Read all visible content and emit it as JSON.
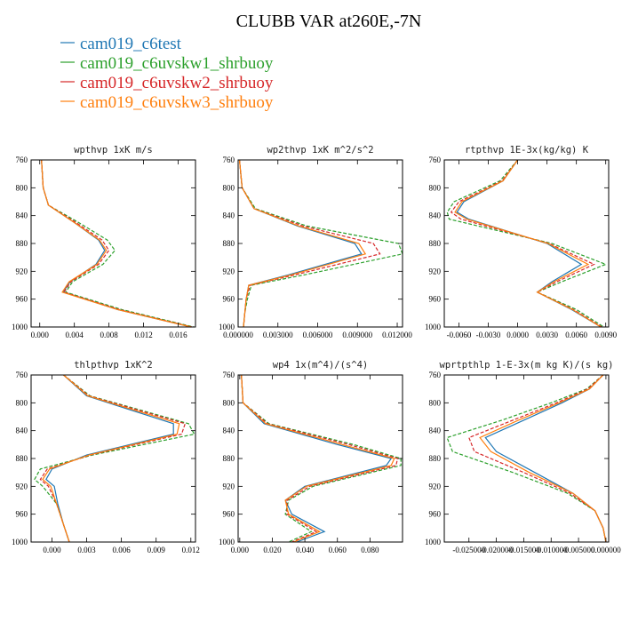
{
  "title": "CLUBB VAR at260E,-7N",
  "legend": [
    {
      "label": "cam019_c6test",
      "color": "#1f77b4",
      "dash": "solid"
    },
    {
      "label": "cam019_c6uvskw1_shrbuoy",
      "color": "#2ca02c",
      "dash": "dashed"
    },
    {
      "label": "cam019_c6uvskw2_shrbuoy",
      "color": "#d62728",
      "dash": "dashed"
    },
    {
      "label": "cam019_c6uvskw3_shrbuoy",
      "color": "#ff7f0e",
      "dash": "solid"
    }
  ],
  "chart_data": [
    {
      "type": "line",
      "title": "wpthvp  1xK m/s",
      "xlim": [
        -0.001,
        0.018
      ],
      "ylim": [
        760,
        1000
      ],
      "y_inverted": true,
      "xticks": [
        "0.000",
        "0.004",
        "0.008",
        "0.012",
        "0.016"
      ],
      "xtick_values": [
        0.0,
        0.004,
        0.008,
        0.012,
        0.016
      ],
      "yticks": [
        760,
        800,
        840,
        880,
        920,
        960,
        1000
      ],
      "y": [
        760,
        800,
        825,
        850,
        875,
        890,
        910,
        935,
        950,
        975,
        1000
      ],
      "series": [
        {
          "values": [
            0.0002,
            0.0004,
            0.001,
            0.004,
            0.0068,
            0.0075,
            0.0065,
            0.0035,
            0.0027,
            0.009,
            0.0175
          ]
        },
        {
          "values": [
            0.0002,
            0.0004,
            0.001,
            0.0045,
            0.0078,
            0.0087,
            0.0073,
            0.0038,
            0.003,
            0.0095,
            0.0178
          ]
        },
        {
          "values": [
            0.0002,
            0.0004,
            0.001,
            0.0042,
            0.0072,
            0.008,
            0.0068,
            0.0036,
            0.0028,
            0.0092,
            0.0176
          ]
        },
        {
          "values": [
            0.0002,
            0.0004,
            0.001,
            0.004,
            0.0069,
            0.0077,
            0.0066,
            0.0034,
            0.0026,
            0.009,
            0.0175
          ]
        }
      ]
    },
    {
      "type": "line",
      "title": "wp2thvp  1xK m^2/s^2",
      "xlim": [
        0.0,
        0.0124
      ],
      "ylim": [
        760,
        1000
      ],
      "y_inverted": true,
      "xticks": [
        "0.000000",
        "0.003000",
        "0.006000",
        "0.009000",
        "0.012000"
      ],
      "xtick_values": [
        0.0,
        0.003,
        0.006,
        0.009,
        0.012
      ],
      "yticks": [
        760,
        800,
        840,
        880,
        920,
        960,
        1000
      ],
      "y": [
        760,
        800,
        830,
        855,
        880,
        895,
        925,
        940,
        960,
        980,
        1000
      ],
      "series": [
        {
          "values": [
            0.0001,
            0.0003,
            0.0012,
            0.0045,
            0.0088,
            0.0093,
            0.0038,
            0.0008,
            0.0006,
            0.0005,
            0.0004
          ]
        },
        {
          "values": [
            0.0001,
            0.0003,
            0.0013,
            0.0052,
            0.0121,
            0.0124,
            0.005,
            0.001,
            0.0007,
            0.0005,
            0.0004
          ]
        },
        {
          "values": [
            0.0001,
            0.0003,
            0.0012,
            0.0049,
            0.0102,
            0.0107,
            0.0043,
            0.0009,
            0.0006,
            0.0005,
            0.0004
          ]
        },
        {
          "values": [
            0.0001,
            0.0003,
            0.0012,
            0.0046,
            0.0091,
            0.0096,
            0.004,
            0.0008,
            0.0006,
            0.0005,
            0.0004
          ]
        }
      ]
    },
    {
      "type": "line",
      "title": "rtpthvp  1E-3x(kg/kg) K",
      "xlim": [
        -0.0075,
        0.0093
      ],
      "ylim": [
        760,
        1000
      ],
      "y_inverted": true,
      "xticks": [
        "-0.0060",
        "-0.0030",
        "0.0000",
        "0.0030",
        "0.0060",
        "0.0090"
      ],
      "xtick_values": [
        -0.006,
        -0.003,
        0.0,
        0.003,
        0.006,
        0.009
      ],
      "yticks": [
        760,
        800,
        840,
        880,
        920,
        960,
        1000
      ],
      "y": [
        760,
        790,
        820,
        835,
        845,
        880,
        910,
        935,
        950,
        975,
        1000
      ],
      "series": [
        {
          "values": [
            0.0,
            -0.0015,
            -0.0055,
            -0.0062,
            -0.005,
            0.003,
            0.0065,
            0.0035,
            0.002,
            0.0055,
            0.0085
          ]
        },
        {
          "values": [
            0.0,
            -0.0018,
            -0.0065,
            -0.0072,
            -0.007,
            0.0035,
            0.009,
            0.0045,
            0.002,
            0.006,
            0.0088
          ]
        },
        {
          "values": [
            0.0,
            -0.0016,
            -0.006,
            -0.0068,
            -0.0058,
            0.0032,
            0.0078,
            0.004,
            0.002,
            0.0057,
            0.0086
          ]
        },
        {
          "values": [
            0.0,
            -0.0015,
            -0.0057,
            -0.0064,
            -0.0052,
            0.0031,
            0.0072,
            0.0037,
            0.002,
            0.0056,
            0.0085
          ]
        }
      ]
    },
    {
      "type": "line",
      "title": "thlpthvp  1xK^2",
      "xlim": [
        -0.0018,
        0.0124
      ],
      "ylim": [
        760,
        1000
      ],
      "y_inverted": true,
      "xticks": [
        "0.000",
        "0.003",
        "0.006",
        "0.009",
        "0.012"
      ],
      "xtick_values": [
        0.0,
        0.003,
        0.006,
        0.009,
        0.012
      ],
      "yticks": [
        760,
        800,
        840,
        880,
        920,
        960,
        1000
      ],
      "y": [
        760,
        790,
        830,
        845,
        875,
        895,
        910,
        920,
        945,
        975,
        1000
      ],
      "series": [
        {
          "values": [
            0.001,
            0.003,
            0.0105,
            0.0105,
            0.003,
            0.0,
            -0.0005,
            0.0002,
            0.0005,
            0.001,
            0.0015
          ]
        },
        {
          "values": [
            0.001,
            0.0033,
            0.0118,
            0.0123,
            0.0035,
            -0.001,
            -0.0015,
            -0.0008,
            0.0004,
            0.001,
            0.0015
          ]
        },
        {
          "values": [
            0.001,
            0.0032,
            0.0115,
            0.0112,
            0.0033,
            -0.0004,
            -0.001,
            -0.0003,
            0.0004,
            0.001,
            0.0015
          ]
        },
        {
          "values": [
            0.001,
            0.0031,
            0.011,
            0.0108,
            0.0032,
            -0.0002,
            -0.0008,
            -0.0001,
            0.0004,
            0.001,
            0.0015
          ]
        }
      ]
    },
    {
      "type": "line",
      "title": "wp4  1x(m^4)/(s^4)",
      "xlim": [
        -0.001,
        0.1
      ],
      "ylim": [
        760,
        1000
      ],
      "y_inverted": true,
      "xticks": [
        "0.000",
        "0.020",
        "0.040",
        "0.060",
        "0.080"
      ],
      "xtick_values": [
        0.0,
        0.02,
        0.04,
        0.06,
        0.08
      ],
      "yticks": [
        760,
        800,
        840,
        880,
        920,
        960,
        1000
      ],
      "y": [
        760,
        800,
        830,
        860,
        880,
        890,
        920,
        940,
        960,
        985,
        1000
      ],
      "series": [
        {
          "values": [
            0.001,
            0.002,
            0.015,
            0.06,
            0.093,
            0.09,
            0.04,
            0.028,
            0.032,
            0.052,
            0.035
          ]
        },
        {
          "values": [
            0.001,
            0.002,
            0.018,
            0.07,
            0.099,
            0.099,
            0.045,
            0.03,
            0.028,
            0.044,
            0.03
          ]
        },
        {
          "values": [
            0.001,
            0.002,
            0.017,
            0.067,
            0.097,
            0.096,
            0.043,
            0.029,
            0.029,
            0.047,
            0.032
          ]
        },
        {
          "values": [
            0.001,
            0.002,
            0.016,
            0.063,
            0.095,
            0.093,
            0.041,
            0.028,
            0.03,
            0.049,
            0.033
          ]
        }
      ]
    },
    {
      "type": "line",
      "title": "wprtpthlp  1-E-3x(m kg K)/(s kg)",
      "xlim": [
        -0.0295,
        0.0005
      ],
      "ylim": [
        760,
        1000
      ],
      "y_inverted": true,
      "xticks": [
        "-0.025000",
        "-0.020000",
        "-0.015000",
        "-0.010000",
        "-0.005000",
        "0.000000"
      ],
      "xtick_values": [
        -0.025,
        -0.02,
        -0.015,
        -0.01,
        -0.005,
        0.0
      ],
      "yticks": [
        760,
        800,
        840,
        880,
        920,
        960,
        1000
      ],
      "y": [
        760,
        780,
        800,
        825,
        850,
        870,
        900,
        930,
        955,
        980,
        1000
      ],
      "series": [
        {
          "values": [
            -0.0005,
            -0.003,
            -0.008,
            -0.015,
            -0.022,
            -0.02,
            -0.013,
            -0.006,
            -0.002,
            -0.0005,
            0.0
          ]
        },
        {
          "values": [
            -0.0005,
            -0.0035,
            -0.01,
            -0.019,
            -0.029,
            -0.028,
            -0.017,
            -0.007,
            -0.002,
            -0.0005,
            0.0
          ]
        },
        {
          "values": [
            -0.0005,
            -0.0033,
            -0.009,
            -0.017,
            -0.025,
            -0.024,
            -0.015,
            -0.0065,
            -0.002,
            -0.0005,
            0.0
          ]
        },
        {
          "values": [
            -0.0005,
            -0.003,
            -0.0085,
            -0.016,
            -0.023,
            -0.021,
            -0.014,
            -0.006,
            -0.002,
            -0.0005,
            0.0
          ]
        }
      ]
    }
  ]
}
